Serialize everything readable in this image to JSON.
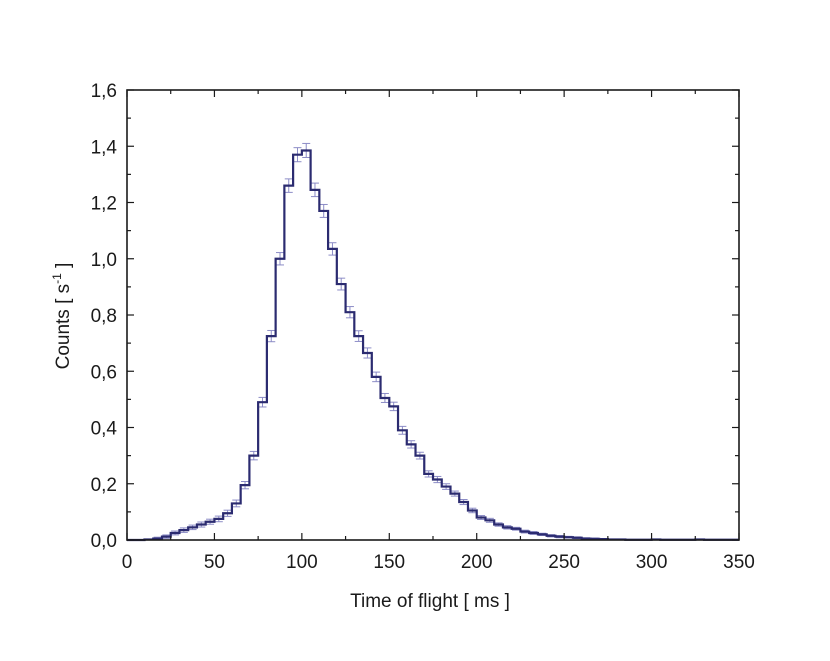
{
  "chart_data": {
    "type": "line",
    "style": "step histogram with error bars",
    "xlabel": "Time of flight [ ms ]",
    "ylabel_main": "Counts [ s",
    "ylabel_sup": "-1",
    "ylabel_close": " ]",
    "xlim": [
      0,
      350
    ],
    "ylim": [
      0,
      1.6
    ],
    "xticks": [
      "0",
      "50",
      "100",
      "150",
      "200",
      "250",
      "300",
      "350"
    ],
    "yticks": [
      "0,0",
      "0,2",
      "0,4",
      "0,6",
      "0,8",
      "1,0",
      "1,2",
      "1,4",
      "1,6"
    ],
    "grid": false,
    "legend": "none",
    "colors": {
      "line": "#2b2b70",
      "errorbar": "#8c8cc6",
      "axis": "#1a1a1a"
    },
    "bin_width": 5,
    "series": [
      {
        "x": [
          0,
          5,
          10,
          15,
          20,
          25,
          30,
          35,
          40,
          45,
          50,
          55,
          60,
          65,
          70,
          75,
          80,
          85,
          90,
          95,
          100,
          105,
          110,
          115,
          120,
          125,
          130,
          135,
          140,
          145,
          150,
          155,
          160,
          165,
          170,
          175,
          180,
          185,
          190,
          195,
          200,
          205,
          210,
          215,
          220,
          225,
          230,
          235,
          240,
          245,
          250,
          255,
          260,
          265,
          270,
          275,
          280,
          285,
          290,
          295,
          300,
          305,
          310,
          315,
          320,
          325,
          330,
          335,
          340,
          345
        ],
        "y": [
          0.0,
          0.0,
          0.002,
          0.005,
          0.012,
          0.025,
          0.035,
          0.045,
          0.055,
          0.065,
          0.075,
          0.095,
          0.13,
          0.195,
          0.3,
          0.49,
          0.725,
          1.0,
          1.26,
          1.37,
          1.385,
          1.245,
          1.17,
          1.035,
          0.91,
          0.81,
          0.725,
          0.665,
          0.58,
          0.505,
          0.475,
          0.39,
          0.34,
          0.3,
          0.235,
          0.215,
          0.19,
          0.165,
          0.135,
          0.105,
          0.08,
          0.07,
          0.055,
          0.045,
          0.04,
          0.03,
          0.025,
          0.02,
          0.015,
          0.012,
          0.01,
          0.008,
          0.005,
          0.004,
          0.003,
          0.002,
          0.002,
          0.001,
          0.001,
          0.001,
          0.002,
          0.001,
          0.001,
          0.001,
          0.001,
          0.002,
          0.001,
          0.001,
          0.001,
          0.001
        ],
        "err": [
          0,
          0,
          0.004,
          0.005,
          0.006,
          0.007,
          0.008,
          0.008,
          0.009,
          0.009,
          0.01,
          0.011,
          0.012,
          0.013,
          0.015,
          0.017,
          0.02,
          0.022,
          0.024,
          0.025,
          0.025,
          0.024,
          0.023,
          0.022,
          0.021,
          0.02,
          0.019,
          0.018,
          0.017,
          0.016,
          0.015,
          0.014,
          0.013,
          0.012,
          0.011,
          0.011,
          0.01,
          0.009,
          0.009,
          0.008,
          0.007,
          0.007,
          0.006,
          0.006,
          0.005,
          0.005,
          0.005,
          0.004,
          0.004,
          0.004,
          0.003,
          0.003,
          0.003,
          0.003,
          0.002,
          0.002,
          0.002,
          0.002,
          0.002,
          0.002,
          0.002,
          0.002,
          0.002,
          0.002,
          0.002,
          0.002,
          0.002,
          0.002,
          0.002,
          0.002
        ]
      }
    ]
  }
}
